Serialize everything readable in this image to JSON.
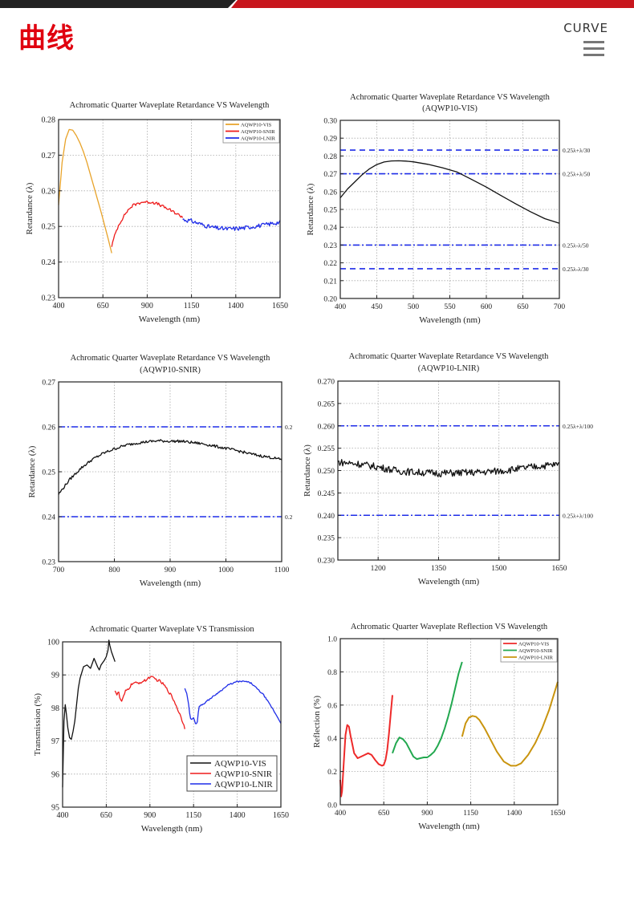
{
  "header": {
    "title": "曲线",
    "section_label": "CURVE",
    "menu_icon": "hamburger-menu-icon",
    "colors": {
      "banner_dark": "#222222",
      "banner_red": "#c8161d",
      "title_red": "#e0000f"
    }
  },
  "chart_data": [
    {
      "id": "retardance-all",
      "type": "line",
      "title": "Achromatic Quarter Waveplate Retardance VS Wavelength",
      "subtitle": "",
      "xlabel": "Wavelength (nm)",
      "ylabel": "Retardance (λ)",
      "xlim": [
        400,
        1650
      ],
      "ylim": [
        0.23,
        0.28
      ],
      "xticks": [
        400,
        650,
        900,
        1150,
        1400,
        1650
      ],
      "yticks": [
        0.23,
        0.24,
        0.25,
        0.26,
        0.27,
        0.28
      ],
      "ytick_labels": [
        "0.23",
        "0.24",
        "0.25",
        "0.26",
        "0.27",
        "0.28"
      ],
      "grid": true,
      "legend": "top-right",
      "series": [
        {
          "name": "AQWP10-VIS",
          "color": "#e8a32a",
          "x": [
            400,
            420,
            440,
            460,
            480,
            500,
            520,
            540,
            560,
            580,
            600,
            620,
            640,
            660,
            680,
            700
          ],
          "y": [
            0.256,
            0.268,
            0.2745,
            0.2772,
            0.277,
            0.2755,
            0.2735,
            0.271,
            0.268,
            0.2645,
            0.261,
            0.2575,
            0.254,
            0.2503,
            0.2465,
            0.2425
          ]
        },
        {
          "name": "AQWP10-SNIR",
          "color": "#ee1c1c",
          "noise": 0.0004,
          "x": [
            700,
            720,
            740,
            760,
            780,
            800,
            820,
            850,
            880,
            900,
            930,
            960,
            1000,
            1040,
            1080,
            1100
          ],
          "y": [
            0.2445,
            0.248,
            0.2505,
            0.2522,
            0.2538,
            0.255,
            0.2559,
            0.2565,
            0.2569,
            0.2568,
            0.2568,
            0.2563,
            0.2553,
            0.2543,
            0.2532,
            0.2526
          ]
        },
        {
          "name": "AQWP10-LNIR",
          "color": "#1f2de8",
          "noise": 0.0006,
          "x": [
            1100,
            1150,
            1200,
            1250,
            1300,
            1350,
            1400,
            1450,
            1500,
            1550,
            1600,
            1650
          ],
          "y": [
            0.252,
            0.2515,
            0.2507,
            0.2499,
            0.2495,
            0.2493,
            0.2494,
            0.2496,
            0.25,
            0.2503,
            0.2508,
            0.2512
          ]
        }
      ]
    },
    {
      "id": "retardance-vis",
      "type": "line",
      "title": "Achromatic Quarter Waveplate Retardance VS Wavelength",
      "subtitle": "(AQWP10-VIS)",
      "xlabel": "Wavelength (nm)",
      "ylabel": "Retardance (λ)",
      "xlim": [
        400,
        700
      ],
      "ylim": [
        0.2,
        0.3
      ],
      "xticks": [
        400,
        450,
        500,
        550,
        600,
        650,
        700
      ],
      "yticks": [
        0.2,
        0.21,
        0.22,
        0.23,
        0.24,
        0.25,
        0.26,
        0.27,
        0.28,
        0.29,
        0.3
      ],
      "ytick_labels": [
        "0.20",
        "0.21",
        "0.22",
        "0.23",
        "0.24",
        "0.25",
        "0.26",
        "0.27",
        "0.28",
        "0.29",
        "0.30"
      ],
      "grid": true,
      "legend": "none",
      "reference_lines": [
        {
          "y": 0.2833,
          "label": "0.25λ+λ/30",
          "style": "dash",
          "color": "#1f2de8"
        },
        {
          "y": 0.27,
          "label": "0.25λ+λ/50",
          "style": "dashdot",
          "color": "#1f2de8"
        },
        {
          "y": 0.23,
          "label": "0.25λ-λ/50",
          "style": "dashdot",
          "color": "#1f2de8"
        },
        {
          "y": 0.2167,
          "label": "0.25λ-λ/30",
          "style": "dash",
          "color": "#1f2de8"
        }
      ],
      "series": [
        {
          "name": "AQWP10-VIS",
          "color": "#111111",
          "x": [
            400,
            410,
            420,
            430,
            440,
            450,
            460,
            470,
            480,
            490,
            500,
            520,
            540,
            560,
            580,
            600,
            620,
            640,
            660,
            680,
            700
          ],
          "y": [
            0.2565,
            0.2615,
            0.2655,
            0.2695,
            0.2728,
            0.2752,
            0.2766,
            0.2772,
            0.2773,
            0.2771,
            0.2767,
            0.2753,
            0.2734,
            0.271,
            0.2668,
            0.2625,
            0.2578,
            0.2532,
            0.2488,
            0.2448,
            0.2422
          ]
        }
      ]
    },
    {
      "id": "retardance-snir",
      "type": "line",
      "title": "Achromatic Quarter Waveplate Retardance VS Wavelength",
      "subtitle": "(AQWP10-SNIR)",
      "xlabel": "Wavelength (nm)",
      "ylabel": "Retardance (λ)",
      "xlim": [
        700,
        1100
      ],
      "ylim": [
        0.23,
        0.27
      ],
      "xticks": [
        700,
        800,
        900,
        1000,
        1100
      ],
      "yticks": [
        0.23,
        0.24,
        0.25,
        0.26,
        0.27
      ],
      "ytick_labels": [
        "0.23",
        "0.24",
        "0.25",
        "0.26",
        "0.27"
      ],
      "grid": true,
      "legend": "none",
      "reference_lines": [
        {
          "y": 0.26,
          "label": "0.2",
          "style": "dashdot",
          "color": "#1f2de8"
        },
        {
          "y": 0.24,
          "label": "0.2",
          "style": "dashdot",
          "color": "#1f2de8"
        }
      ],
      "series": [
        {
          "name": "AQWP10-SNIR",
          "color": "#111111",
          "noise": 0.0003,
          "x": [
            700,
            720,
            740,
            760,
            780,
            800,
            820,
            840,
            860,
            880,
            900,
            920,
            940,
            960,
            980,
            1000,
            1020,
            1040,
            1060,
            1080,
            1100
          ],
          "y": [
            0.245,
            0.2483,
            0.2508,
            0.2527,
            0.2541,
            0.2551,
            0.2559,
            0.2564,
            0.2567,
            0.2569,
            0.2568,
            0.2568,
            0.2565,
            0.2562,
            0.2557,
            0.2552,
            0.2547,
            0.2541,
            0.2536,
            0.2532,
            0.2527
          ]
        }
      ]
    },
    {
      "id": "retardance-lnir",
      "type": "line",
      "title": "Achromatic Quarter Waveplate Retardance VS Wavelength",
      "subtitle": "(AQWP10-LNIR)",
      "xlabel": "Wavelength (nm)",
      "ylabel": "Retardance (λ)",
      "xlim": [
        1100,
        1650
      ],
      "ylim": [
        0.23,
        0.27
      ],
      "xticks": [
        1200,
        1350,
        1500,
        1650
      ],
      "yticks": [
        0.23,
        0.235,
        0.24,
        0.245,
        0.25,
        0.255,
        0.26,
        0.265,
        0.27
      ],
      "ytick_labels": [
        "0.230",
        "0.235",
        "0.240",
        "0.245",
        "0.250",
        "0.255",
        "0.260",
        "0.265",
        "0.270"
      ],
      "grid": true,
      "legend": "none",
      "reference_lines": [
        {
          "y": 0.26,
          "label": "0.25λ+λ/100",
          "style": "dashdot",
          "color": "#1f2de8"
        },
        {
          "y": 0.24,
          "label": "0.25λ+λ/100",
          "style": "dashdot",
          "color": "#1f2de8"
        }
      ],
      "series": [
        {
          "name": "AQWP10-LNIR",
          "color": "#111111",
          "noise": 0.0008,
          "x": [
            1100,
            1150,
            1200,
            1250,
            1300,
            1350,
            1400,
            1450,
            1500,
            1550,
            1600,
            1650
          ],
          "y": [
            0.2519,
            0.2515,
            0.2508,
            0.2499,
            0.2496,
            0.2494,
            0.2495,
            0.2496,
            0.2499,
            0.2504,
            0.251,
            0.2514
          ]
        }
      ]
    },
    {
      "id": "transmission",
      "type": "line",
      "title": "Achromatic Quarter Waveplate VS Transmission",
      "subtitle": "",
      "xlabel": "Wavelength (nm)",
      "ylabel": "Transmission (%)",
      "xlim": [
        400,
        1650
      ],
      "ylim": [
        95,
        100
      ],
      "xticks": [
        400,
        650,
        900,
        1150,
        1400,
        1650
      ],
      "yticks": [
        95,
        96,
        97,
        98,
        99,
        100
      ],
      "ytick_labels": [
        "95",
        "96",
        "97",
        "98",
        "99",
        "100"
      ],
      "grid": true,
      "legend": "bottom-right",
      "legend_style": "large",
      "series": [
        {
          "name": "AQWP10-VIS",
          "color": "#111111",
          "x": [
            400,
            408,
            415,
            422,
            430,
            440,
            450,
            460,
            470,
            480,
            490,
            500,
            520,
            540,
            560,
            580,
            600,
            610,
            620,
            640,
            650,
            660,
            665,
            670,
            680,
            690,
            700
          ],
          "y": [
            95.6,
            97.6,
            98.1,
            97.8,
            97.4,
            97.1,
            97.05,
            97.3,
            97.6,
            98.1,
            98.6,
            98.9,
            99.25,
            99.3,
            99.2,
            99.5,
            99.25,
            99.15,
            99.3,
            99.45,
            99.55,
            99.75,
            100.05,
            99.9,
            99.7,
            99.55,
            99.4
          ]
        },
        {
          "name": "AQWP10-SNIR",
          "color": "#ee1c1c",
          "noise": 0.04,
          "x": [
            700,
            710,
            720,
            730,
            740,
            760,
            780,
            800,
            830,
            860,
            880,
            900,
            920,
            940,
            960,
            980,
            1000,
            1020,
            1040,
            1060,
            1080,
            1100
          ],
          "y": [
            98.55,
            98.4,
            98.5,
            98.25,
            98.2,
            98.5,
            98.6,
            98.75,
            98.75,
            98.8,
            98.85,
            98.95,
            98.9,
            98.85,
            98.8,
            98.7,
            98.55,
            98.4,
            98.2,
            97.95,
            97.7,
            97.4
          ]
        },
        {
          "name": "AQWP10-LNIR",
          "color": "#1f2de8",
          "noise": 0.02,
          "x": [
            1100,
            1110,
            1120,
            1130,
            1140,
            1150,
            1160,
            1170,
            1180,
            1200,
            1250,
            1300,
            1350,
            1400,
            1450,
            1480,
            1500,
            1550,
            1600,
            1650
          ],
          "y": [
            98.6,
            98.45,
            98.2,
            97.7,
            97.65,
            97.7,
            97.55,
            97.5,
            98.05,
            98.1,
            98.3,
            98.5,
            98.7,
            98.8,
            98.8,
            98.75,
            98.65,
            98.4,
            98.0,
            97.55
          ]
        }
      ]
    },
    {
      "id": "reflection",
      "type": "line",
      "title": "Achromatic Quarter Waveplate Reflection VS Wavelength",
      "subtitle": "",
      "xlabel": "Wavelength (nm)",
      "ylabel": "Reflection (%)",
      "xlim": [
        400,
        1650
      ],
      "ylim": [
        0.0,
        1.0
      ],
      "xticks": [
        400,
        650,
        900,
        1150,
        1400,
        1650
      ],
      "yticks": [
        0.0,
        0.2,
        0.4,
        0.6,
        0.8,
        1.0
      ],
      "ytick_labels": [
        "0.0",
        "0.2",
        "0.4",
        "0.6",
        "0.8",
        "1.0"
      ],
      "grid": true,
      "legend": "top-right",
      "series": [
        {
          "name": "AQWP10-VIS",
          "color": "#ee2a2a",
          "x": [
            400,
            405,
            410,
            420,
            430,
            440,
            450,
            460,
            470,
            480,
            500,
            520,
            540,
            560,
            580,
            600,
            620,
            640,
            650,
            660,
            670,
            680,
            690,
            700
          ],
          "y": [
            0.15,
            0.05,
            0.08,
            0.25,
            0.42,
            0.48,
            0.47,
            0.41,
            0.36,
            0.31,
            0.28,
            0.29,
            0.3,
            0.31,
            0.3,
            0.27,
            0.245,
            0.235,
            0.24,
            0.27,
            0.33,
            0.43,
            0.55,
            0.66
          ]
        },
        {
          "name": "AQWP10-SNIR",
          "color": "#22a84f",
          "x": [
            700,
            720,
            740,
            760,
            780,
            800,
            820,
            840,
            860,
            880,
            900,
            920,
            940,
            960,
            980,
            1000,
            1020,
            1040,
            1060,
            1080,
            1100
          ],
          "y": [
            0.31,
            0.37,
            0.405,
            0.395,
            0.37,
            0.33,
            0.29,
            0.275,
            0.28,
            0.285,
            0.285,
            0.3,
            0.32,
            0.355,
            0.4,
            0.46,
            0.53,
            0.61,
            0.7,
            0.79,
            0.86
          ]
        },
        {
          "name": "AQWP10-LNIR",
          "color": "#c9940e",
          "x": [
            1100,
            1120,
            1140,
            1160,
            1180,
            1200,
            1230,
            1260,
            1300,
            1340,
            1380,
            1410,
            1440,
            1480,
            1520,
            1560,
            1600,
            1650
          ],
          "y": [
            0.41,
            0.49,
            0.525,
            0.535,
            0.53,
            0.51,
            0.46,
            0.4,
            0.32,
            0.26,
            0.235,
            0.235,
            0.25,
            0.3,
            0.37,
            0.46,
            0.57,
            0.74
          ]
        }
      ]
    }
  ]
}
